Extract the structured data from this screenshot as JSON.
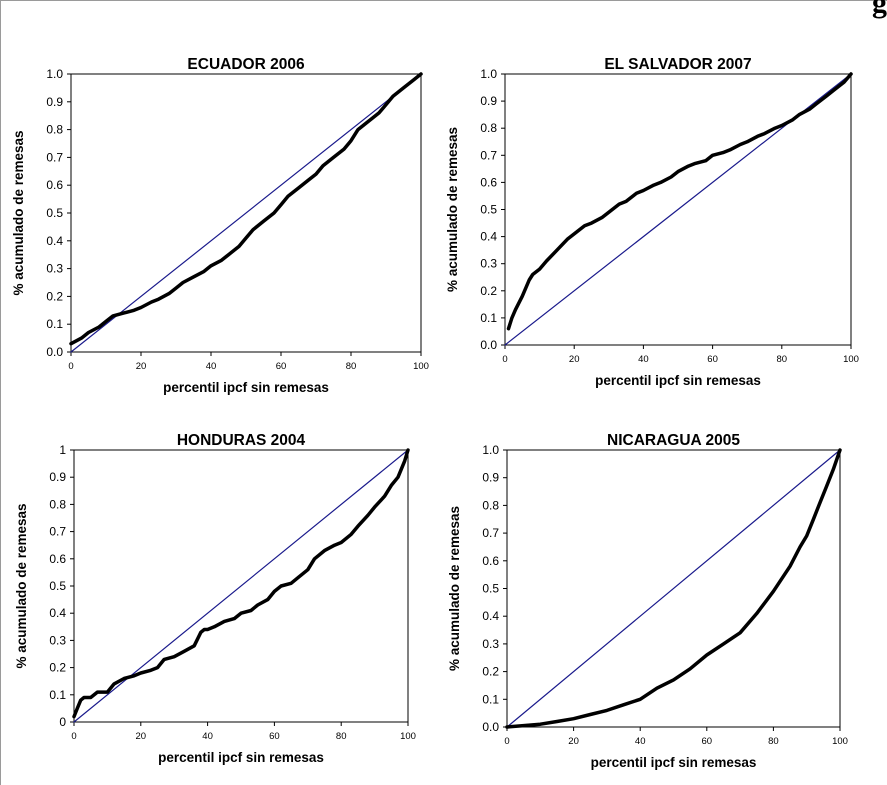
{
  "page": {
    "title_fragment": "g"
  },
  "chart_data": [
    {
      "type": "line",
      "title": "ECUADOR 2006",
      "xlabel": "percentil ipcf sin remesas",
      "ylabel": "% acumulado de remesas",
      "xlim": [
        0,
        100
      ],
      "ylim": [
        0,
        1
      ],
      "xticks": [
        "0",
        "20",
        "40",
        "60",
        "80",
        "100"
      ],
      "yticks": [
        "0.0",
        "0.1",
        "0.2",
        "0.3",
        "0.4",
        "0.5",
        "0.6",
        "0.7",
        "0.8",
        "0.9",
        "1.0"
      ],
      "grid": false,
      "series": [
        {
          "role": "reference",
          "color": "#1a1a8c",
          "x": [
            0,
            100
          ],
          "y": [
            0,
            1
          ]
        },
        {
          "role": "curve",
          "color": "#000000",
          "x": [
            0,
            3,
            5,
            8,
            10,
            12,
            15,
            18,
            20,
            23,
            25,
            28,
            30,
            32,
            35,
            38,
            40,
            43,
            45,
            48,
            50,
            52,
            55,
            58,
            60,
            62,
            65,
            68,
            70,
            72,
            75,
            78,
            80,
            82,
            85,
            88,
            90,
            92,
            95,
            98,
            100
          ],
          "y": [
            0.03,
            0.05,
            0.07,
            0.09,
            0.11,
            0.13,
            0.14,
            0.15,
            0.16,
            0.18,
            0.19,
            0.21,
            0.23,
            0.25,
            0.27,
            0.29,
            0.31,
            0.33,
            0.35,
            0.38,
            0.41,
            0.44,
            0.47,
            0.5,
            0.53,
            0.56,
            0.59,
            0.62,
            0.64,
            0.67,
            0.7,
            0.73,
            0.76,
            0.8,
            0.83,
            0.86,
            0.89,
            0.92,
            0.95,
            0.98,
            1.0
          ]
        }
      ]
    },
    {
      "type": "line",
      "title": "EL SALVADOR 2007",
      "xlabel": "percentil ipcf sin remesas",
      "ylabel": "% acumulado de remesas",
      "xlim": [
        0,
        100
      ],
      "ylim": [
        0,
        1
      ],
      "xticks": [
        "0",
        "20",
        "40",
        "60",
        "80",
        "100"
      ],
      "yticks": [
        "0.0",
        "0.1",
        "0.2",
        "0.3",
        "0.4",
        "0.5",
        "0.6",
        "0.7",
        "0.8",
        "0.9",
        "1.0"
      ],
      "grid": false,
      "series": [
        {
          "role": "reference",
          "color": "#1a1a8c",
          "x": [
            0,
            100
          ],
          "y": [
            0,
            1
          ]
        },
        {
          "role": "curve",
          "color": "#000000",
          "x": [
            1,
            2,
            3,
            5,
            7,
            8,
            10,
            12,
            15,
            18,
            20,
            23,
            25,
            28,
            30,
            33,
            35,
            38,
            40,
            43,
            45,
            48,
            50,
            53,
            55,
            58,
            60,
            63,
            65,
            68,
            70,
            73,
            75,
            78,
            80,
            83,
            85,
            88,
            90,
            93,
            95,
            98,
            100
          ],
          "y": [
            0.06,
            0.1,
            0.13,
            0.18,
            0.24,
            0.26,
            0.28,
            0.31,
            0.35,
            0.39,
            0.41,
            0.44,
            0.45,
            0.47,
            0.49,
            0.52,
            0.53,
            0.56,
            0.57,
            0.59,
            0.6,
            0.62,
            0.64,
            0.66,
            0.67,
            0.68,
            0.7,
            0.71,
            0.72,
            0.74,
            0.75,
            0.77,
            0.78,
            0.8,
            0.81,
            0.83,
            0.85,
            0.87,
            0.89,
            0.92,
            0.94,
            0.97,
            1.0
          ]
        }
      ]
    },
    {
      "type": "line",
      "title": "HONDURAS 2004",
      "xlabel": "percentil ipcf sin remesas",
      "ylabel": "% acumulado de remesas",
      "xlim": [
        0,
        100
      ],
      "ylim": [
        0,
        1
      ],
      "xticks": [
        "0",
        "20",
        "40",
        "60",
        "80",
        "100"
      ],
      "yticks": [
        "0",
        "0.1",
        "0.2",
        "0.3",
        "0.4",
        "0.5",
        "0.6",
        "0.7",
        "0.8",
        "0.9",
        "1"
      ],
      "grid": false,
      "series": [
        {
          "role": "reference",
          "color": "#1a1a8c",
          "x": [
            0,
            100
          ],
          "y": [
            0,
            1
          ]
        },
        {
          "role": "curve",
          "color": "#000000",
          "x": [
            0,
            1,
            2,
            3,
            5,
            7,
            10,
            12,
            15,
            18,
            20,
            23,
            25,
            27,
            30,
            33,
            36,
            38,
            39,
            40,
            42,
            45,
            48,
            50,
            53,
            55,
            58,
            60,
            62,
            65,
            67,
            70,
            72,
            75,
            78,
            80,
            83,
            85,
            88,
            90,
            93,
            95,
            97,
            99,
            100
          ],
          "y": [
            0.02,
            0.05,
            0.08,
            0.09,
            0.09,
            0.11,
            0.11,
            0.14,
            0.16,
            0.17,
            0.18,
            0.19,
            0.2,
            0.23,
            0.24,
            0.26,
            0.28,
            0.33,
            0.34,
            0.34,
            0.35,
            0.37,
            0.38,
            0.4,
            0.41,
            0.43,
            0.45,
            0.48,
            0.5,
            0.51,
            0.53,
            0.56,
            0.6,
            0.63,
            0.65,
            0.66,
            0.69,
            0.72,
            0.76,
            0.79,
            0.83,
            0.87,
            0.9,
            0.96,
            1.0
          ]
        }
      ]
    },
    {
      "type": "line",
      "title": "NICARAGUA 2005",
      "xlabel": "percentil ipcf sin remesas",
      "ylabel": "% acumulado de remesas",
      "xlim": [
        0,
        100
      ],
      "ylim": [
        0,
        1
      ],
      "xticks": [
        "0",
        "20",
        "40",
        "60",
        "80",
        "100"
      ],
      "yticks": [
        "0.0",
        "0.1",
        "0.2",
        "0.3",
        "0.4",
        "0.5",
        "0.6",
        "0.7",
        "0.8",
        "0.9",
        "1.0"
      ],
      "grid": false,
      "series": [
        {
          "role": "reference",
          "color": "#1a1a8c",
          "x": [
            0,
            100
          ],
          "y": [
            0,
            1
          ]
        },
        {
          "role": "curve",
          "color": "#000000",
          "x": [
            0,
            5,
            10,
            15,
            20,
            25,
            30,
            35,
            40,
            45,
            50,
            55,
            60,
            65,
            70,
            75,
            80,
            85,
            88,
            90,
            92,
            94,
            96,
            98,
            100
          ],
          "y": [
            0.0,
            0.005,
            0.01,
            0.02,
            0.03,
            0.045,
            0.06,
            0.08,
            0.1,
            0.14,
            0.17,
            0.21,
            0.26,
            0.3,
            0.34,
            0.41,
            0.49,
            0.58,
            0.65,
            0.69,
            0.75,
            0.81,
            0.87,
            0.93,
            1.0
          ]
        }
      ]
    }
  ]
}
